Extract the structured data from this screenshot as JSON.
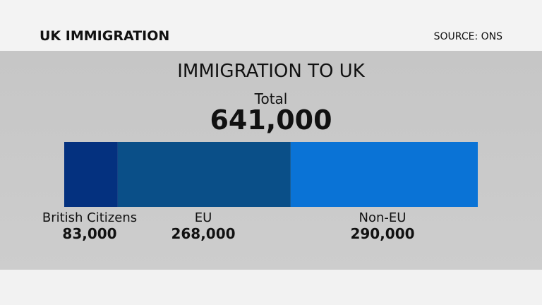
{
  "header": {
    "title": "UK IMMIGRATION",
    "source": "SOURCE: ONS"
  },
  "chart_data": {
    "type": "bar",
    "orientation": "horizontal-stacked",
    "title": "IMMIGRATION TO UK",
    "total_label": "Total",
    "total_value": "641,000",
    "categories": [
      "British Citizens",
      "EU",
      "Non-EU"
    ],
    "values": [
      83000,
      268000,
      290000
    ],
    "value_labels": [
      "83,000",
      "268,000",
      "290,000"
    ],
    "colors": [
      "#04317f",
      "#0a4f88",
      "#0a73d6"
    ]
  }
}
